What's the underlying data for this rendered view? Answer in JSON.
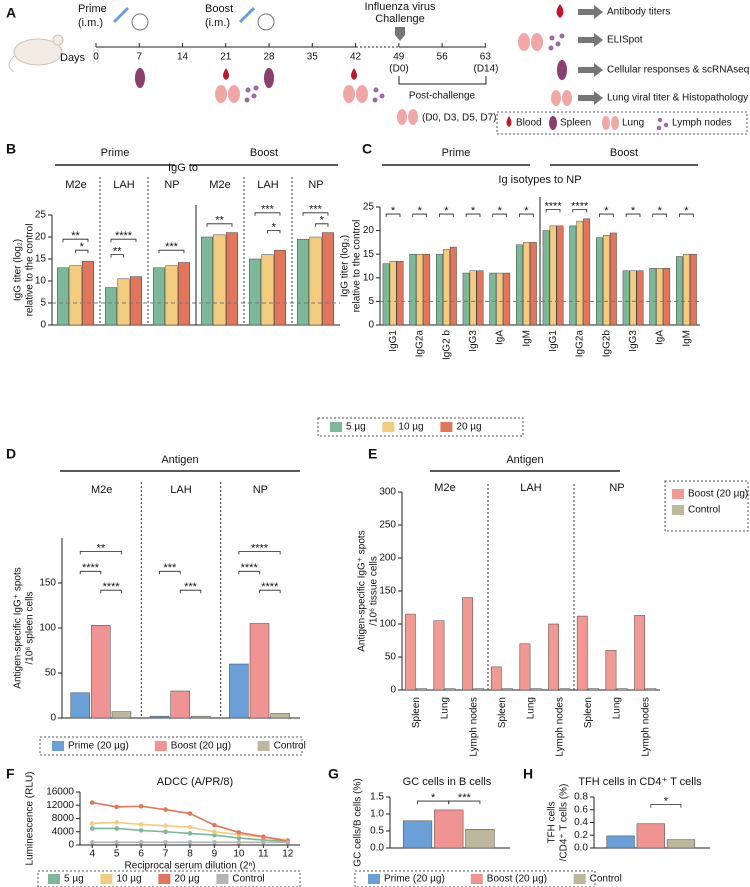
{
  "timeline": {
    "panel": "A",
    "prime": [
      "Prime",
      "(i.m.)"
    ],
    "boost": [
      "Boost",
      "(i.m.)"
    ],
    "challenge": [
      "Influenza virus",
      "Challenge"
    ],
    "days_label": "Days",
    "days": [
      0,
      7,
      14,
      21,
      28,
      35,
      42,
      49,
      56,
      63
    ],
    "d0": "(D0)",
    "d14": "(D14)",
    "post_challenge": "Post-challenge",
    "post_days": "(D0, D3, D5, D7)",
    "readouts": [
      "Antibody titers",
      "ELISpot",
      "Cellular responses & scRNAseq",
      "Lung viral titer & Histopathology"
    ],
    "legend": [
      "Blood",
      "Spleen",
      "Lung",
      "Lymph nodes"
    ]
  },
  "chart_data": [
    {
      "type": "bar",
      "panel": "B",
      "title": "IgG to",
      "headers": [
        "Prime",
        "Boost"
      ],
      "y_label": [
        "IgG titer (log₂)",
        "relative to the control"
      ],
      "categories": [
        "M2e",
        "LAH",
        "NP",
        "M2e",
        "LAH",
        "NP"
      ],
      "series": [
        {
          "name": "5 µg",
          "color": "#7db89b",
          "values": [
            13,
            8.5,
            13,
            20,
            15,
            19.5
          ]
        },
        {
          "name": "10 µg",
          "color": "#f3cc7f",
          "values": [
            13.5,
            10.5,
            13.5,
            20.5,
            16,
            20
          ]
        },
        {
          "name": "20 µg",
          "color": "#e2765c",
          "values": [
            14.5,
            11,
            14.2,
            21,
            17,
            21
          ]
        }
      ],
      "ylim": [
        0,
        25
      ],
      "yticks": [
        0,
        5,
        10,
        15,
        20,
        25
      ],
      "reference_line": 5,
      "annotations": [
        "**",
        "*",
        "****",
        "**",
        "***",
        "**",
        "***",
        "*",
        "***",
        "*"
      ]
    },
    {
      "type": "bar",
      "panel": "C",
      "title": "Ig isotypes to NP",
      "headers": [
        "Prime",
        "Boost"
      ],
      "y_label": [
        "IgG titer (log₂)",
        "relative to the control"
      ],
      "categories": [
        "IgG1",
        "IgG2a",
        "IgG2 b",
        "IgG3",
        "IgA",
        "IgM",
        "IgG1",
        "IgG2a",
        "IgG2b",
        "IgG3",
        "IgA",
        "IgM"
      ],
      "series": [
        {
          "color": "#7db89b",
          "values": [
            13,
            15,
            15,
            11,
            11,
            17,
            20,
            21,
            18.5,
            11.5,
            12,
            14.5
          ]
        },
        {
          "color": "#f3cc7f",
          "values": [
            13.5,
            15,
            16,
            11.5,
            11,
            17.5,
            21,
            22,
            19,
            11.5,
            12,
            15
          ]
        },
        {
          "color": "#e2765c",
          "values": [
            13.5,
            15,
            16.5,
            11.5,
            11,
            17.5,
            21,
            22.5,
            19.5,
            11.5,
            12,
            15
          ]
        }
      ],
      "ylim": [
        0,
        25
      ],
      "yticks": [
        0,
        5,
        10,
        15,
        20,
        25
      ],
      "reference_line": 5,
      "annotations": [
        "*",
        "*",
        "*",
        "*",
        "*",
        "*",
        "****",
        "****",
        "*",
        "*",
        "*",
        "*"
      ]
    },
    {
      "type": "bar",
      "panel": "D",
      "title": "Antigen",
      "y_label": [
        "Antigen-specific IgG⁺ spots",
        "/10⁶ spleen cells"
      ],
      "categories": [
        "M2e",
        "LAH",
        "NP"
      ],
      "series": [
        {
          "name": "Prime (20 µg)",
          "color": "#6a9fd8",
          "values": [
            28,
            2,
            60
          ]
        },
        {
          "name": "Boost (20 µg)",
          "color": "#f09393",
          "values": [
            103,
            30,
            105
          ]
        },
        {
          "name": "Control",
          "color": "#bdb89b",
          "values": [
            7,
            2,
            5
          ]
        }
      ],
      "ylim": [
        0,
        200
      ],
      "yticks": [
        0,
        50,
        100,
        150
      ],
      "annotations": [
        "**",
        "****",
        "****",
        "***",
        "***",
        "****",
        "****",
        "****"
      ]
    },
    {
      "type": "bar",
      "panel": "E",
      "title": "Antigen",
      "groups": [
        "M2e",
        "LAH",
        "NP"
      ],
      "y_label": [
        "Antigen-specific IgG⁺ spots",
        "/10⁶ tissue cells"
      ],
      "categories": [
        "Spleen",
        "Lung",
        "Lymph nodes",
        "Spleen",
        "Lung",
        "Lymph nodes",
        "Spleen",
        "Lung",
        "Lymph nodes"
      ],
      "series": [
        {
          "name": "Boost (20 µg)",
          "color": "#f09a93",
          "values": [
            115,
            105,
            140,
            35,
            70,
            100,
            112,
            60,
            113
          ]
        },
        {
          "name": "Control",
          "color": "#bdb89b",
          "values": [
            2,
            2,
            2,
            2,
            2,
            2,
            2,
            2,
            2
          ]
        }
      ],
      "ylim": [
        0,
        300
      ],
      "yticks": [
        0,
        50,
        100,
        150,
        200,
        250,
        300
      ]
    },
    {
      "type": "line",
      "panel": "F",
      "title": "ADCC (A/PR/8)",
      "x_label": "Reciprocal serum dilution (2ⁿ)",
      "y_label": "Luminescence (RLU)",
      "x": [
        4,
        5,
        6,
        7,
        8,
        9,
        10,
        11,
        12
      ],
      "series": [
        {
          "name": "5 µg",
          "color": "#7db89b",
          "values": [
            5000,
            5000,
            4400,
            4000,
            3500,
            3000,
            2100,
            1500,
            1200
          ]
        },
        {
          "name": "10 µg",
          "color": "#f3cc7f",
          "values": [
            6500,
            6800,
            6200,
            5800,
            5400,
            4000,
            3200,
            2400,
            1500
          ]
        },
        {
          "name": "20 µg",
          "color": "#e2765c",
          "values": [
            12800,
            11500,
            11700,
            10700,
            9500,
            6000,
            3800,
            2500,
            1200
          ]
        },
        {
          "name": "Control",
          "color": "#b5b5b5",
          "values": [
            800,
            800,
            800,
            800,
            800,
            800,
            800,
            800,
            800
          ]
        }
      ],
      "xlim": [
        3.5,
        12.5
      ],
      "xticks": [
        4,
        5,
        6,
        7,
        8,
        9,
        10,
        11,
        12
      ],
      "ylim": [
        0,
        16000
      ],
      "yticks": [
        0,
        4000,
        8000,
        12000,
        16000
      ]
    },
    {
      "type": "bar",
      "panel": "G",
      "title": "GC cells in B cells",
      "y_label": [
        "GC cells/B cells (%)"
      ],
      "series": [
        {
          "name": "Prime (20 µg)",
          "color": "#6a9fd8",
          "values": [
            0.8
          ]
        },
        {
          "name": "Boost (20 µg)",
          "color": "#f09393",
          "values": [
            1.12
          ]
        },
        {
          "name": "Control",
          "color": "#bdb89b",
          "values": [
            0.55
          ]
        }
      ],
      "ylim": [
        0,
        1.5
      ],
      "yticks": [
        {
          "value": 0,
          "label": "0.0"
        },
        0.5,
        {
          "value": 1,
          "label": "1.0"
        },
        1.5
      ],
      "annotations": [
        "*",
        "***"
      ]
    },
    {
      "type": "bar",
      "panel": "H",
      "title": "TFH cells in CD4⁺ T cells",
      "y_label": [
        "TFH cells",
        "/CD4⁺ T cells (%)"
      ],
      "series": [
        {
          "color": "#6a9fd8",
          "values": [
            0.19
          ]
        },
        {
          "color": "#f09393",
          "values": [
            0.38
          ]
        },
        {
          "color": "#bdb89b",
          "values": [
            0.13
          ]
        }
      ],
      "ylim": [
        0,
        0.8
      ],
      "yticks": [
        {
          "value": 0,
          "label": "0.0"
        },
        0.2,
        0.4,
        0.6,
        0.8
      ],
      "annotations": [
        "*"
      ]
    }
  ]
}
